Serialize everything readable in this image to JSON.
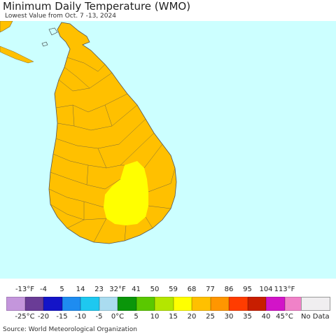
{
  "header": {
    "title": "Minimum Daily Temperature (WMO)",
    "subtitle": "Lowest Value from Oct. 7 -13, 2024"
  },
  "map": {
    "region": "Sri Lanka",
    "sea_color": "#ccffff",
    "land_color": "#ffc000",
    "warm_color": "#ffff00",
    "border_color": "#7a6a3a"
  },
  "legend": {
    "fahrenheit_ticks": [
      "-13°F",
      "-4",
      "5",
      "14",
      "23",
      "32°F",
      "41",
      "50",
      "59",
      "68",
      "77",
      "86",
      "95",
      "104",
      "113°F"
    ],
    "celsius_ticks": [
      "-25°C",
      "-20",
      "-15",
      "-10",
      "-5",
      "0°C",
      "5",
      "10",
      "15",
      "20",
      "25",
      "30",
      "35",
      "40",
      "45°C"
    ],
    "colors": [
      "#c496dc",
      "#6a3c96",
      "#1414c8",
      "#1e8cf0",
      "#1ec8f0",
      "#aadcf0",
      "#0a960a",
      "#5ac800",
      "#b4e600",
      "#ffff00",
      "#ffc000",
      "#ff9600",
      "#ff3c00",
      "#c81e00",
      "#d214c8",
      "#f082c8"
    ],
    "no_data_label": "No Data",
    "no_data_color": "#f0eef0"
  },
  "footer": {
    "source": "Source: World Meteorological Organization"
  }
}
